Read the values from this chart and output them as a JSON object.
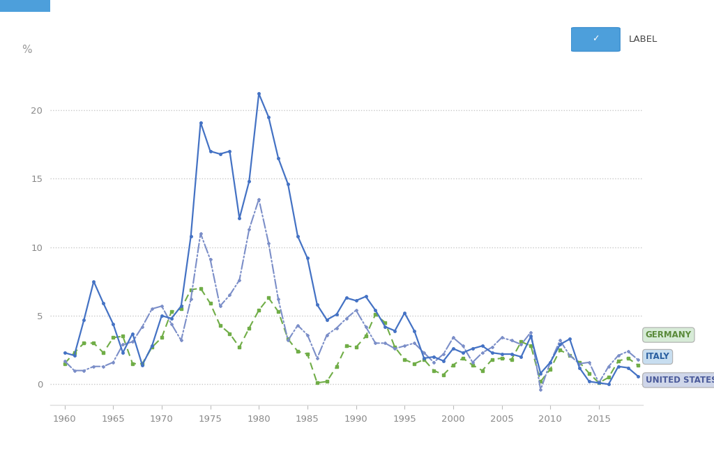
{
  "years": [
    1960,
    1961,
    1962,
    1963,
    1964,
    1965,
    1966,
    1967,
    1968,
    1969,
    1970,
    1971,
    1972,
    1973,
    1974,
    1975,
    1976,
    1977,
    1978,
    1979,
    1980,
    1981,
    1982,
    1983,
    1984,
    1985,
    1986,
    1987,
    1988,
    1989,
    1990,
    1991,
    1992,
    1993,
    1994,
    1995,
    1996,
    1997,
    1998,
    1999,
    2000,
    2001,
    2002,
    2003,
    2004,
    2005,
    2006,
    2007,
    2008,
    2009,
    2010,
    2011,
    2012,
    2013,
    2014,
    2015,
    2016,
    2017,
    2018,
    2019
  ],
  "italy": [
    2.3,
    2.1,
    4.7,
    7.5,
    5.9,
    4.4,
    2.3,
    3.7,
    1.4,
    2.8,
    5.0,
    4.8,
    5.7,
    10.8,
    19.1,
    17.0,
    16.8,
    17.0,
    12.1,
    14.8,
    21.2,
    19.5,
    16.5,
    14.6,
    10.8,
    9.2,
    5.8,
    4.7,
    5.1,
    6.3,
    6.1,
    6.4,
    5.4,
    4.2,
    3.9,
    5.2,
    3.9,
    1.9,
    2.0,
    1.7,
    2.6,
    2.3,
    2.6,
    2.8,
    2.3,
    2.2,
    2.2,
    2.0,
    3.5,
    0.8,
    1.6,
    2.9,
    3.3,
    1.2,
    0.2,
    0.1,
    0.0,
    1.3,
    1.2,
    0.6
  ],
  "germany": [
    1.5,
    2.3,
    3.0,
    3.0,
    2.3,
    3.4,
    3.5,
    1.5,
    1.5,
    2.7,
    3.4,
    5.3,
    5.5,
    6.9,
    7.0,
    5.9,
    4.3,
    3.7,
    2.7,
    4.1,
    5.4,
    6.3,
    5.3,
    3.3,
    2.4,
    2.2,
    0.1,
    0.2,
    1.3,
    2.8,
    2.7,
    3.5,
    5.1,
    4.5,
    2.7,
    1.8,
    1.5,
    1.8,
    1.0,
    0.7,
    1.4,
    1.9,
    1.4,
    1.0,
    1.8,
    1.9,
    1.8,
    3.1,
    2.8,
    0.2,
    1.1,
    2.5,
    2.1,
    1.6,
    0.8,
    0.1,
    0.5,
    1.7,
    1.9,
    1.4
  ],
  "usa": [
    1.7,
    1.0,
    1.0,
    1.3,
    1.3,
    1.6,
    2.9,
    3.1,
    4.2,
    5.5,
    5.7,
    4.4,
    3.2,
    6.2,
    11.0,
    9.1,
    5.7,
    6.5,
    7.6,
    11.3,
    13.5,
    10.3,
    6.2,
    3.2,
    4.3,
    3.6,
    1.9,
    3.6,
    4.1,
    4.8,
    5.4,
    4.2,
    3.0,
    3.0,
    2.6,
    2.8,
    3.0,
    2.3,
    1.6,
    2.2,
    3.4,
    2.8,
    1.6,
    2.3,
    2.7,
    3.4,
    3.2,
    2.9,
    3.8,
    -0.4,
    1.6,
    3.2,
    2.1,
    1.5,
    1.6,
    0.1,
    1.3,
    2.1,
    2.4,
    1.8
  ],
  "italy_color": "#4472c4",
  "germany_color": "#70ad47",
  "usa_color": "#7b8ec8",
  "bg_color": "#ffffff",
  "grid_color": "#c8c8c8",
  "ylim_min": -1.5,
  "ylim_max": 23,
  "yticks": [
    0,
    5,
    10,
    15,
    20
  ],
  "xticks": [
    1960,
    1965,
    1970,
    1975,
    1980,
    1985,
    1990,
    1995,
    2000,
    2005,
    2010,
    2015
  ],
  "germany_label_color": "#5a8a3a",
  "germany_box_color": "#d5ead5",
  "italy_label_color": "#2a5fa0",
  "italy_box_color": "#c5ddf0",
  "usa_label_color": "#4a5a9a",
  "usa_box_color": "#cdd4e8"
}
